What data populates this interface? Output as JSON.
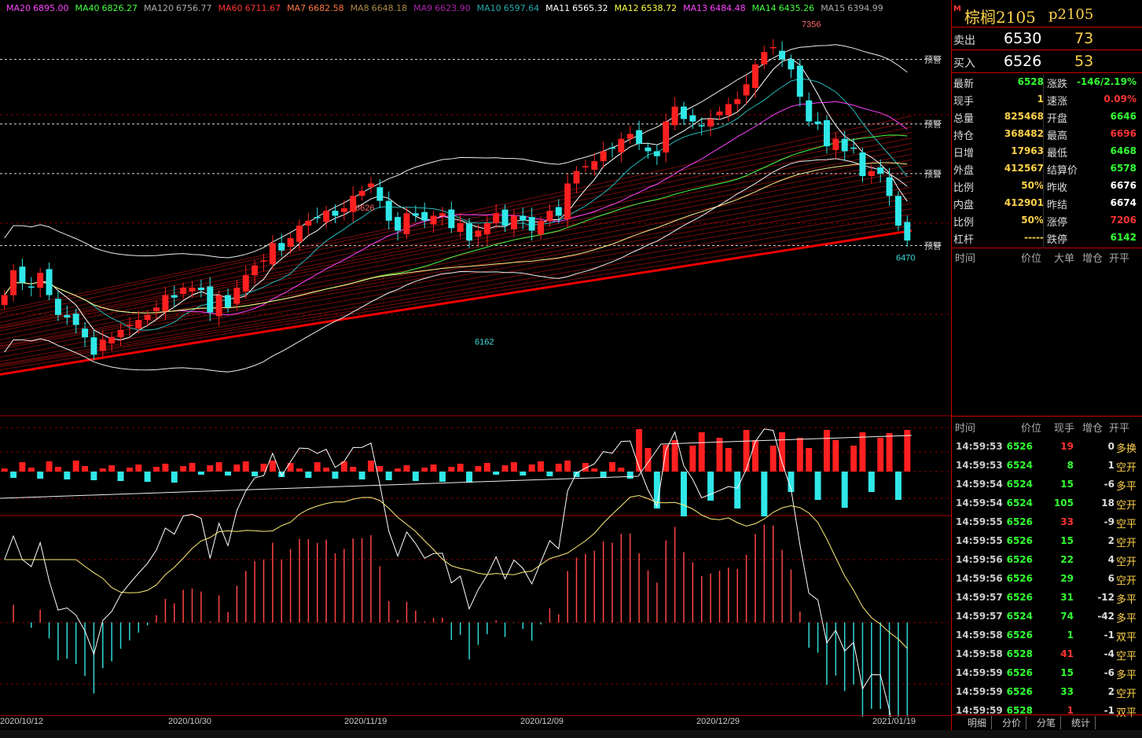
{
  "ma_legend": [
    {
      "name": "MA20",
      "value": "6895.00",
      "color": "#ff44ff"
    },
    {
      "name": "MA40",
      "value": "6826.27",
      "color": "#44ff44"
    },
    {
      "name": "MA120",
      "value": "6756.77",
      "color": "#aaaaaa"
    },
    {
      "name": "MA60",
      "value": "6711.67",
      "color": "#ff3333"
    },
    {
      "name": "MA7",
      "value": "6682.58",
      "color": "#ff7744"
    },
    {
      "name": "MA8",
      "value": "6648.18",
      "color": "#aa8844"
    },
    {
      "name": "MA9",
      "value": "6623.90",
      "color": "#aa22aa"
    },
    {
      "name": "MA10",
      "value": "6597.64",
      "color": "#22aaaa"
    },
    {
      "name": "MA11",
      "value": "6565.32",
      "color": "#ffffff"
    },
    {
      "name": "MA12",
      "value": "6538.72",
      "color": "#ffff44"
    },
    {
      "name": "MA13",
      "value": "6484.48",
      "color": "#ff44ff"
    },
    {
      "name": "MA14",
      "value": "6435.26",
      "color": "#44ff44"
    },
    {
      "name": "MA15",
      "value": "6394.99",
      "color": "#aaaaaa"
    }
  ],
  "chart_data": {
    "type": "candlestick",
    "price_range": [
      5820,
      7420
    ],
    "x_labels": [
      "2020/10/12",
      "2020/10/30",
      "2020/11/19",
      "2020/12/09",
      "2020/12/29",
      "2021/01/19"
    ],
    "annotations": {
      "high_label": "7356",
      "peak1_label": "6626",
      "low_label": "6162",
      "last_low_label": "6470",
      "warn_label": "预警"
    },
    "warn_levels": [
      7250,
      6990,
      6790,
      6500
    ],
    "close": [
      6300,
      6400,
      6350,
      6330,
      6390,
      6300,
      6220,
      6210,
      6180,
      6130,
      6060,
      6120,
      6130,
      6160,
      6180,
      6200,
      6220,
      6250,
      6300,
      6290,
      6330,
      6330,
      6320,
      6230,
      6300,
      6250,
      6330,
      6380,
      6420,
      6440,
      6510,
      6480,
      6530,
      6580,
      6600,
      6610,
      6640,
      6620,
      6650,
      6700,
      6720,
      6750,
      6680,
      6600,
      6560,
      6630,
      6620,
      6600,
      6620,
      6630,
      6570,
      6590,
      6520,
      6560,
      6590,
      6630,
      6580,
      6620,
      6600,
      6560,
      6600,
      6640,
      6620,
      6750,
      6800,
      6820,
      6840,
      6880,
      6890,
      6930,
      6950,
      6910,
      6880,
      6860,
      7000,
      7060,
      7010,
      7000,
      6980,
      7010,
      7040,
      7070,
      7090,
      7150,
      7230,
      7280,
      7300,
      7250,
      7210,
      7100,
      7000,
      6990,
      6900,
      6930,
      6880,
      6890,
      6780,
      6800,
      6790,
      6700,
      6580,
      6520
    ],
    "candles": [
      {
        "o": 6230,
        "c": 6300,
        "h": 6320,
        "l": 6210,
        "d": "up"
      }
    ],
    "volume_series": "bars",
    "macd": "oscillator",
    "last_price": 6528
  },
  "panel": {
    "title_name": "棕榈2105",
    "title_code": "p2105",
    "title_mark": "M",
    "ask_label": "卖出",
    "ask_price": "6530",
    "ask_qty": "73",
    "bid_label": "买入",
    "bid_price": "6526",
    "bid_qty": "53",
    "rows": [
      {
        "l1": "最新",
        "v1": "6528",
        "c1": "#3f3",
        "l2": "涨跌",
        "v2": "-146/2.19%",
        "c2": "#3f3"
      },
      {
        "l1": "现手",
        "v1": "1",
        "c1": "#ffd24a",
        "l2": "速涨",
        "v2": "0.09%",
        "c2": "#f33"
      },
      {
        "l1": "总量",
        "v1": "825468",
        "c1": "#ffd24a",
        "l2": "开盘",
        "v2": "6646",
        "c2": "#3f3"
      },
      {
        "l1": "持仓",
        "v1": "368482",
        "c1": "#ffd24a",
        "l2": "最高",
        "v2": "6696",
        "c2": "#f33"
      },
      {
        "l1": "日增",
        "v1": "17963",
        "c1": "#ffd24a",
        "l2": "最低",
        "v2": "6468",
        "c2": "#3f3"
      },
      {
        "l1": "外盘",
        "v1": "412567",
        "c1": "#ffd24a",
        "l2": "结算价",
        "v2": "6578",
        "c2": "#3f3"
      },
      {
        "l1": "比例",
        "v1": "50%",
        "c1": "#ffd24a",
        "l2": "昨收",
        "v2": "6676",
        "c2": "#fff"
      },
      {
        "l1": "内盘",
        "v1": "412901",
        "c1": "#ffd24a",
        "l2": "昨结",
        "v2": "6674",
        "c2": "#fff"
      },
      {
        "l1": "比例",
        "v1": "50%",
        "c1": "#ffd24a",
        "l2": "涨停",
        "v2": "7206",
        "c2": "#f33"
      },
      {
        "l1": "杠杆",
        "v1": "-----",
        "c1": "#ffd24a",
        "l2": "跌停",
        "v2": "6142",
        "c2": "#3f3"
      }
    ],
    "hdr1": {
      "a": "时间",
      "b": "价位",
      "c": "大单",
      "d": "增仓",
      "e": "开平"
    },
    "hdr2": {
      "a": "时间",
      "b": "价位",
      "c": "现手",
      "d": "增仓",
      "e": "开平"
    },
    "ticks": [
      {
        "t": "14:59:53",
        "p": "6526",
        "v": "19",
        "vc": "#f33",
        "oi": "0",
        "ty": "多换",
        "tc": "#ffd24a"
      },
      {
        "t": "14:59:53",
        "p": "6524",
        "v": "8",
        "vc": "#3f3",
        "oi": "1",
        "ty": "空开",
        "tc": "#ffd24a"
      },
      {
        "t": "14:59:54",
        "p": "6524",
        "v": "15",
        "vc": "#3f3",
        "oi": "-6",
        "ty": "多平",
        "tc": "#ffd24a"
      },
      {
        "t": "14:59:54",
        "p": "6524",
        "v": "105",
        "vc": "#3f3",
        "oi": "18",
        "ty": "空开",
        "tc": "#ffd24a"
      },
      {
        "t": "14:59:55",
        "p": "6526",
        "v": "33",
        "vc": "#f33",
        "oi": "-9",
        "ty": "空平",
        "tc": "#ffd24a"
      },
      {
        "t": "14:59:55",
        "p": "6526",
        "v": "15",
        "vc": "#3f3",
        "oi": "2",
        "ty": "空开",
        "tc": "#ffd24a"
      },
      {
        "t": "14:59:56",
        "p": "6526",
        "v": "22",
        "vc": "#3f3",
        "oi": "4",
        "ty": "空开",
        "tc": "#ffd24a"
      },
      {
        "t": "14:59:56",
        "p": "6526",
        "v": "29",
        "vc": "#3f3",
        "oi": "6",
        "ty": "空开",
        "tc": "#ffd24a"
      },
      {
        "t": "14:59:57",
        "p": "6526",
        "v": "31",
        "vc": "#3f3",
        "oi": "-12",
        "ty": "多平",
        "tc": "#ffd24a"
      },
      {
        "t": "14:59:57",
        "p": "6524",
        "v": "74",
        "vc": "#3f3",
        "oi": "-42",
        "ty": "多平",
        "tc": "#ffd24a"
      },
      {
        "t": "14:59:58",
        "p": "6526",
        "v": "1",
        "vc": "#3f3",
        "oi": "-1",
        "ty": "双平",
        "tc": "#ffd24a"
      },
      {
        "t": "14:59:58",
        "p": "6528",
        "v": "41",
        "vc": "#f33",
        "oi": "-4",
        "ty": "空平",
        "tc": "#ffd24a"
      },
      {
        "t": "14:59:59",
        "p": "6526",
        "v": "15",
        "vc": "#3f3",
        "oi": "-6",
        "ty": "多平",
        "tc": "#ffd24a"
      },
      {
        "t": "14:59:59",
        "p": "6526",
        "v": "33",
        "vc": "#3f3",
        "oi": "2",
        "ty": "空开",
        "tc": "#ffd24a"
      },
      {
        "t": "14:59:59",
        "p": "6528",
        "v": "1",
        "vc": "#f33",
        "oi": "-1",
        "ty": "双平",
        "tc": "#ffd24a"
      }
    ],
    "tabs": [
      "明细",
      "分价",
      "分笔",
      "统计"
    ]
  }
}
